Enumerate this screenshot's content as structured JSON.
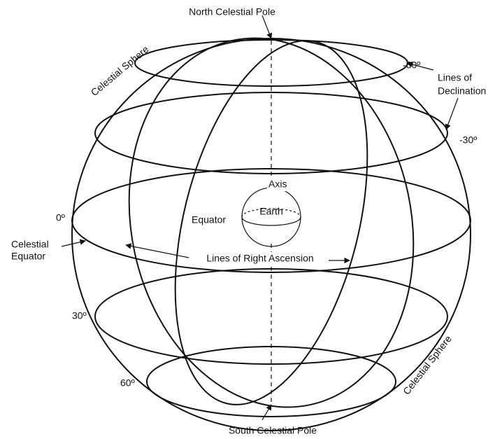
{
  "labels": {
    "north_pole": "North Celestial Pole",
    "south_pole": "South Celestial Pole",
    "sphere_top": "Celestial Sphere",
    "sphere_bottom": "Celestial Sphere",
    "dec_minus_60": "-60º",
    "dec_minus_30": "-30º",
    "dec_0": "0º",
    "dec_30": "30º",
    "dec_60": "60º",
    "lines_of_declination": [
      "Lines of",
      "Declination"
    ],
    "celestial_equator": [
      "Celestial",
      "Equator"
    ],
    "axis": "Axis",
    "earth": "Earth",
    "equator": "Equator",
    "right_ascension": "Lines of Right Ascension"
  }
}
